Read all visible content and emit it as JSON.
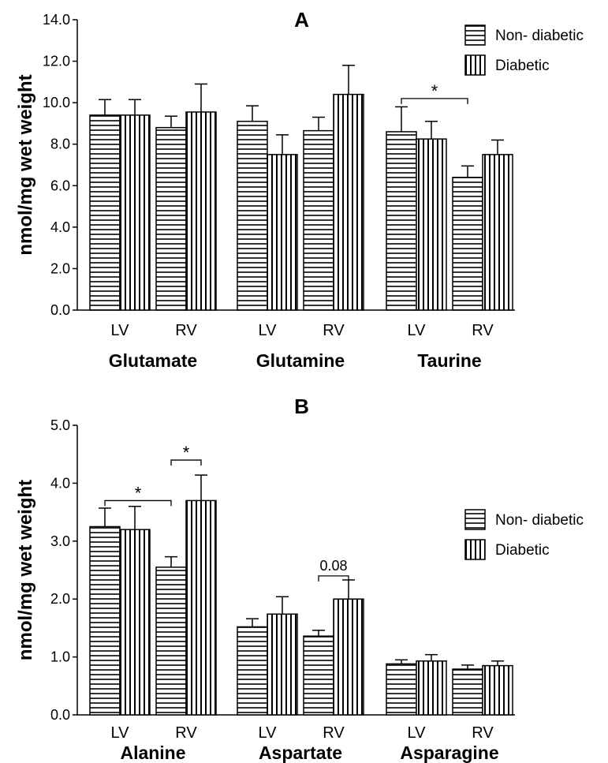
{
  "chart_data": [
    {
      "type": "bar",
      "panel": "A",
      "ylabel": "nmol/mg wet weight",
      "ylim": [
        0,
        14
      ],
      "yticks": [
        "0.0",
        "2.0",
        "4.0",
        "6.0",
        "8.0",
        "10.0",
        "12.0",
        "14.0"
      ],
      "groups": [
        {
          "name": "Glutamate",
          "ventricles": [
            {
              "label": "LV",
              "values": [
                9.4,
                9.4
              ],
              "errors": [
                0.75,
                0.75
              ]
            },
            {
              "label": "RV",
              "values": [
                8.8,
                9.55
              ],
              "errors": [
                0.55,
                1.35
              ]
            }
          ]
        },
        {
          "name": "Glutamine",
          "ventricles": [
            {
              "label": "LV",
              "values": [
                9.1,
                7.5
              ],
              "errors": [
                0.75,
                0.95
              ]
            },
            {
              "label": "RV",
              "values": [
                8.65,
                10.4
              ],
              "errors": [
                0.65,
                1.4
              ]
            }
          ]
        },
        {
          "name": "Taurine",
          "ventricles": [
            {
              "label": "LV",
              "values": [
                8.6,
                8.25
              ],
              "errors": [
                1.2,
                0.85
              ]
            },
            {
              "label": "RV",
              "values": [
                6.4,
                7.5
              ],
              "errors": [
                0.55,
                0.7
              ]
            }
          ]
        }
      ],
      "series": [
        {
          "name": "Non- diabetic",
          "pattern": "horizontal-stripes"
        },
        {
          "name": "Diabetic",
          "pattern": "vertical-stripes"
        }
      ],
      "legend": "top-right",
      "annotations": [
        {
          "text": "*",
          "from": [
            2,
            0,
            0
          ],
          "to": [
            2,
            1,
            0
          ],
          "y": 10.2
        }
      ]
    },
    {
      "type": "bar",
      "panel": "B",
      "ylabel": "nmol/mg wet weight",
      "ylim": [
        0,
        5
      ],
      "yticks": [
        "0.0",
        "1.0",
        "2.0",
        "3.0",
        "4.0",
        "5.0"
      ],
      "groups": [
        {
          "name": "Alanine",
          "ventricles": [
            {
              "label": "LV",
              "values": [
                3.25,
                3.2
              ],
              "errors": [
                0.32,
                0.4
              ]
            },
            {
              "label": "RV",
              "values": [
                2.55,
                3.7
              ],
              "errors": [
                0.18,
                0.44
              ]
            }
          ]
        },
        {
          "name": "Aspartate",
          "ventricles": [
            {
              "label": "LV",
              "values": [
                1.52,
                1.74
              ],
              "errors": [
                0.14,
                0.3
              ]
            },
            {
              "label": "RV",
              "values": [
                1.36,
                2.0
              ],
              "errors": [
                0.1,
                0.33
              ]
            }
          ]
        },
        {
          "name": "Asparagine",
          "ventricles": [
            {
              "label": "LV",
              "values": [
                0.88,
                0.93
              ],
              "errors": [
                0.07,
                0.11
              ]
            },
            {
              "label": "RV",
              "values": [
                0.79,
                0.85
              ],
              "errors": [
                0.07,
                0.08
              ]
            }
          ]
        }
      ],
      "series": [
        {
          "name": "Non- diabetic",
          "pattern": "horizontal-stripes"
        },
        {
          "name": "Diabetic",
          "pattern": "vertical-stripes"
        }
      ],
      "legend": "right",
      "annotations": [
        {
          "text": "*",
          "from": [
            0,
            0,
            0
          ],
          "to": [
            0,
            1,
            0
          ],
          "y": 3.7
        },
        {
          "text": "*",
          "from": [
            0,
            1,
            0
          ],
          "to": [
            0,
            1,
            1
          ],
          "y": 4.4
        },
        {
          "text": "0.08",
          "from": [
            1,
            1,
            0
          ],
          "to": [
            1,
            1,
            1
          ],
          "y": 2.4
        }
      ]
    }
  ]
}
